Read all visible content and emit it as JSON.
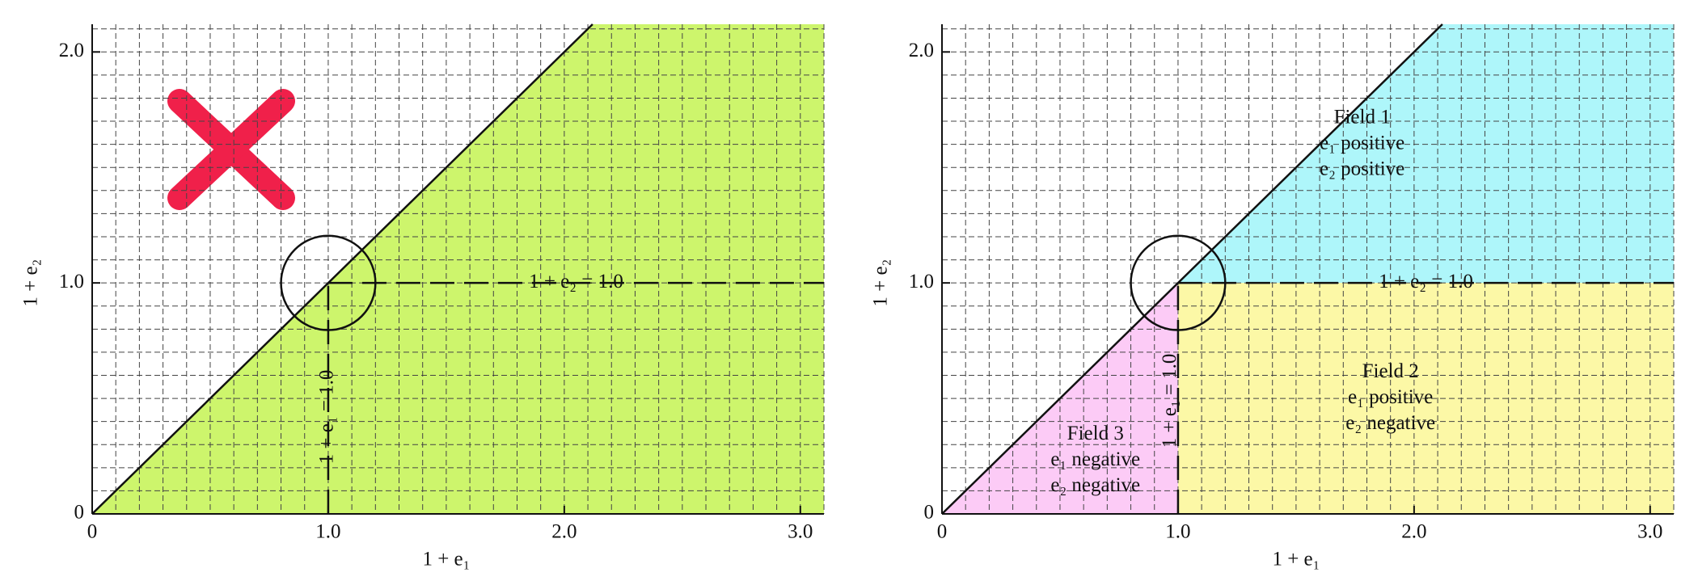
{
  "chart_data": [
    {
      "type": "region",
      "xlabel": "1 + e₁",
      "ylabel": "1 + e₂",
      "xlim": [
        0,
        3.1
      ],
      "ylim": [
        0,
        2.12
      ],
      "xticks": [
        0,
        {
          "value": 1,
          "label": "1.0"
        },
        {
          "value": 2,
          "label": "2.0"
        },
        {
          "value": 3,
          "label": "3.0"
        }
      ],
      "yticks": [
        0,
        {
          "value": 1,
          "label": "1.0"
        },
        {
          "value": 2,
          "label": "2.0"
        }
      ],
      "grid": true,
      "regions": [
        {
          "color": "#cdf56c",
          "x": [
            0,
            2.12,
            3.1,
            3.1
          ],
          "y": [
            0,
            2.12,
            2.12,
            0
          ]
        }
      ],
      "lines": [
        {
          "x": [
            0,
            2.12
          ],
          "y": [
            0,
            2.12
          ],
          "dashed": false
        },
        {
          "x": [
            1,
            3.1
          ],
          "y": [
            1,
            1
          ],
          "dashed": true
        },
        {
          "x": [
            1,
            1
          ],
          "y": [
            0,
            1
          ],
          "dashed": true
        }
      ],
      "circle": {
        "x": 1,
        "y": 1,
        "r": 0.2
      },
      "annotations": [
        {
          "lines": [
            "1 + e₂ = 1.0"
          ]
        },
        {
          "lines": [
            "1 + e₁ = 1.0"
          ],
          "vertical": true
        }
      ]
    },
    {
      "type": "region",
      "xlabel": "1 + e₁",
      "ylabel": "1 + e₂",
      "xlim": [
        0,
        3.1
      ],
      "ylim": [
        0,
        2.12
      ],
      "xticks": [
        0,
        {
          "value": 1,
          "label": "1.0"
        },
        {
          "value": 2,
          "label": "2.0"
        },
        {
          "value": 3,
          "label": "3.0"
        }
      ],
      "yticks": [
        0,
        {
          "value": 1,
          "label": "1.0"
        },
        {
          "value": 2,
          "label": "2.0"
        }
      ],
      "grid": true,
      "regions": [
        {
          "color": "#aef6fa",
          "x": [
            1,
            2.12,
            3.1,
            3.1
          ],
          "y": [
            1,
            2.12,
            2.12,
            1
          ]
        },
        {
          "color": "#fcf8a6",
          "x": [
            1,
            1,
            3.1,
            3.1
          ],
          "y": [
            0,
            1,
            1,
            0
          ]
        },
        {
          "color": "#fccbf6",
          "x": [
            0,
            1,
            1
          ],
          "y": [
            0,
            1,
            0
          ]
        }
      ],
      "lines": [
        {
          "x": [
            0,
            2.12
          ],
          "y": [
            0,
            2.12
          ],
          "dashed": false
        },
        {
          "x": [
            1,
            3.1
          ],
          "y": [
            1,
            1
          ],
          "dashed": true
        },
        {
          "x": [
            1,
            1
          ],
          "y": [
            0,
            1
          ],
          "dashed": true
        }
      ],
      "circle": {
        "x": 1,
        "y": 1,
        "r": 0.2
      },
      "annotations": [
        {
          "lines": [
            "1 + e₂ = 1.0"
          ]
        },
        {
          "lines": [
            "1 + e₁ = 1.0"
          ],
          "vertical": true
        },
        {
          "lines": [
            "Field 1",
            "e₁ positive",
            "e₂ positive"
          ]
        },
        {
          "lines": [
            "Field 2",
            "e₁ positive",
            "e₂ negative"
          ]
        },
        {
          "lines": [
            "Field 3",
            "e₁ negative",
            "e₂ negative"
          ]
        }
      ]
    }
  ]
}
